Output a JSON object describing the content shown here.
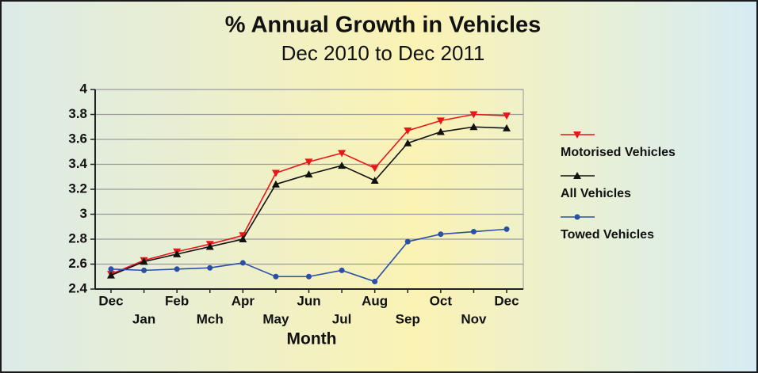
{
  "chart_data": {
    "type": "line",
    "title": "% Annual Growth in Vehicles",
    "subtitle": "Dec  2010 to Dec 2011",
    "x_label": "Month",
    "categories": [
      "Dec",
      "Jan",
      "Feb",
      "Mch",
      "Apr",
      "May",
      "Jun",
      "Jul",
      "Aug",
      "Sep",
      "Oct",
      "Nov",
      "Dec"
    ],
    "series": [
      {
        "name": "Motorised Vehicles",
        "color": "#e8161b",
        "marker": "triangle-down",
        "values": [
          2.52,
          2.63,
          2.7,
          2.76,
          2.83,
          3.33,
          3.42,
          3.49,
          3.37,
          3.67,
          3.75,
          3.8,
          3.79
        ]
      },
      {
        "name": "All Vehicles",
        "color": "#111111",
        "marker": "triangle-up",
        "values": [
          2.51,
          2.62,
          2.68,
          2.74,
          2.8,
          3.24,
          3.32,
          3.39,
          3.27,
          3.57,
          3.66,
          3.7,
          3.69
        ]
      },
      {
        "name": "Towed Vehicles",
        "color": "#2a4fa8",
        "marker": "circle",
        "values": [
          2.56,
          2.55,
          2.56,
          2.57,
          2.61,
          2.5,
          2.5,
          2.55,
          2.46,
          2.78,
          2.84,
          2.86,
          2.88
        ]
      }
    ],
    "ylim": [
      2.4,
      4
    ],
    "yticks": [
      2.4,
      2.6,
      2.8,
      3,
      3.2,
      3.4,
      3.6,
      3.8,
      4
    ],
    "grid": true,
    "legend": "right"
  }
}
